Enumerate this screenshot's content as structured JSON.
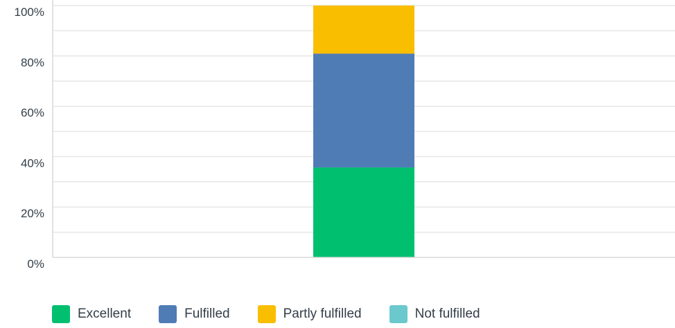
{
  "chart_data": {
    "type": "bar",
    "stacked": true,
    "categories": [
      ""
    ],
    "series": [
      {
        "name": "Excellent",
        "color": "#00bf6f",
        "values": [
          35.7
        ]
      },
      {
        "name": "Fulfilled",
        "color": "#507cb6",
        "values": [
          45.2
        ]
      },
      {
        "name": "Partly fulfilled",
        "color": "#f9be00",
        "values": [
          19.1
        ]
      },
      {
        "name": "Not fulfilled",
        "color": "#6bc8cd",
        "values": [
          0
        ]
      }
    ],
    "title": "",
    "xlabel": "",
    "ylabel": "",
    "ylim": [
      0,
      100
    ],
    "yticks": [
      "0%",
      "20%",
      "40%",
      "60%",
      "80%",
      "100%"
    ],
    "grid": true,
    "legend_position": "bottom"
  }
}
